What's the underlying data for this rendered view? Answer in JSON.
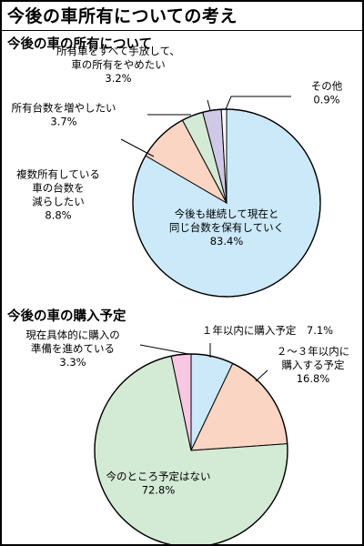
{
  "title": "今後の車所有についての考え",
  "chart_data": [
    {
      "type": "pie",
      "title": "今後の車の所有について",
      "slices": [
        {
          "name": "今後も継続して現在と同じ台数を保有していく",
          "label_lines": [
            "今後も継続して現在と",
            "同じ台数を保有していく"
          ],
          "value": 83.4,
          "value_label": "83.4%",
          "color": "#cce9fa"
        },
        {
          "name": "複数所有している車の台数を減らしたい",
          "label_lines": [
            "複数所有している",
            "車の台数を",
            "減らしたい"
          ],
          "value": 8.8,
          "value_label": "8.8%",
          "color": "#fbd5c3"
        },
        {
          "name": "所有台数を増やしたい",
          "label_lines": [
            "所有台数を増やしたい"
          ],
          "value": 3.7,
          "value_label": "3.7%",
          "color": "#d3ead5"
        },
        {
          "name": "所有車をすべて手放して、車の所有をやめたい",
          "label_lines": [
            "所有車をすべて手放して、",
            "車の所有をやめたい"
          ],
          "value": 3.2,
          "value_label": "3.2%",
          "color": "#cfc8e6"
        },
        {
          "name": "その他",
          "label_lines": [
            "その他"
          ],
          "value": 0.9,
          "value_label": "0.9%",
          "color": "#ffffff"
        }
      ]
    },
    {
      "type": "pie",
      "title": "今後の車の購入予定",
      "slices": [
        {
          "name": "１年以内に購入予定",
          "label_lines": [
            "１年以内に購入予定"
          ],
          "value": 7.1,
          "value_label": "7.1%",
          "color": "#cce9fa"
        },
        {
          "name": "２～３年以内に購入する予定",
          "label_lines": [
            "２～３年以内に",
            "購入する予定"
          ],
          "value": 16.8,
          "value_label": "16.8%",
          "color": "#fbd5c3"
        },
        {
          "name": "今のところ予定はない",
          "label_lines": [
            "今のところ予定はない"
          ],
          "value": 72.8,
          "value_label": "72.8%",
          "color": "#d3ead5"
        },
        {
          "name": "現在具体的に購入の準備を進めている",
          "label_lines": [
            "現在具体的に購入の",
            "準備を進めている"
          ],
          "value": 3.3,
          "value_label": "3.3%",
          "color": "#f8c8e2"
        }
      ]
    }
  ]
}
